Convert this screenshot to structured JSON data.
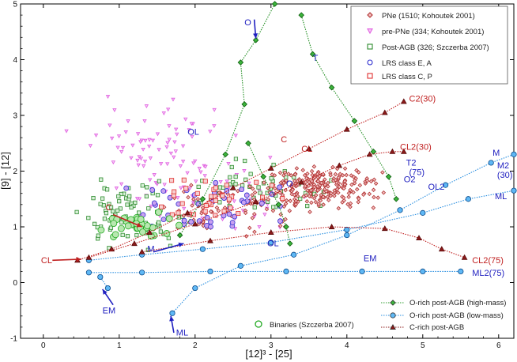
{
  "chart_data": {
    "type": "scatter",
    "title": "",
    "xlabel": "[12]³ - [25]",
    "ylabel": "[9] - [12]",
    "xlim": [
      -0.3,
      6.2
    ],
    "ylim": [
      -1,
      5
    ],
    "x_ticks": [
      "0",
      "1",
      "2",
      "3",
      "4",
      "5",
      "6"
    ],
    "y_ticks": [
      "-1",
      "0",
      "1",
      "2",
      "3",
      "4",
      "5"
    ],
    "grid": false,
    "legend_top": [
      {
        "label": "PNe (1510; Kohoutek 2001)",
        "marker": "diamond",
        "color": "#b03030"
      },
      {
        "label": "pre-PNe (334; Kohoutek 2001)",
        "marker": "triangle-down",
        "color": "#e060e0"
      },
      {
        "label": "Post-AGB (326; Szczerba 2007)",
        "marker": "square",
        "color": "#2e8b2e"
      },
      {
        "label": "LRS class E, A",
        "marker": "circle",
        "color": "#3030d0"
      },
      {
        "label": "LRS class C, P",
        "marker": "square",
        "color": "#e03030"
      }
    ],
    "legend_bottom": [
      {
        "label": "O-rich post-AGB (high-mass)",
        "marker": "diamond",
        "color": "#2e9e2e"
      },
      {
        "label": "O-rich post-AGB (low-mass)",
        "marker": "circle",
        "color": "#2a8fe0"
      },
      {
        "label": "C-rich post-AGB",
        "marker": "triangle",
        "color": "#8b1a1a"
      }
    ],
    "binaries_label": "Binaries (Szczerba 2007)",
    "tracks": [
      {
        "name": "O-rich high-mass",
        "color": "#1e8c1e",
        "marker": "diamond",
        "points": [
          [
            3.05,
            5.0
          ],
          [
            2.8,
            4.35
          ],
          [
            2.6,
            3.95
          ],
          [
            2.65,
            3.2
          ],
          [
            2.4,
            2.3
          ],
          [
            2.1,
            1.5
          ],
          [
            1.8,
            0.85
          ]
        ]
      },
      {
        "name": "O-rich high-mass",
        "color": "#1e8c1e",
        "marker": "diamond",
        "points": [
          [
            3.4,
            4.8
          ],
          [
            3.55,
            4.1
          ],
          [
            3.8,
            3.5
          ],
          [
            4.1,
            2.9
          ],
          [
            4.35,
            2.35
          ],
          [
            4.55,
            1.9
          ],
          [
            4.65,
            1.5
          ]
        ]
      },
      {
        "name": "O-rich high-mass",
        "color": "#1e8c1e",
        "marker": "diamond",
        "points": [
          [
            2.7,
            2.5
          ],
          [
            2.9,
            1.9
          ],
          [
            3.1,
            1.4
          ],
          [
            3.2,
            1.0
          ],
          [
            3.25,
            0.7
          ]
        ]
      },
      {
        "name": "O-rich low-mass",
        "color": "#2a8fe0",
        "marker": "circle",
        "points": [
          [
            0.6,
            0.4
          ],
          [
            1.3,
            0.5
          ],
          [
            2.1,
            0.6
          ],
          [
            3.0,
            0.72
          ],
          [
            4.0,
            0.95
          ],
          [
            5.0,
            1.25
          ],
          [
            5.6,
            1.5
          ],
          [
            6.2,
            1.65
          ]
        ]
      },
      {
        "name": "O-rich low-mass",
        "color": "#2a8fe0",
        "marker": "circle",
        "points": [
          [
            0.6,
            0.18
          ],
          [
            1.3,
            0.18
          ],
          [
            2.2,
            0.2
          ],
          [
            3.2,
            0.2
          ],
          [
            4.2,
            0.2
          ],
          [
            5.0,
            0.2
          ],
          [
            5.5,
            0.2
          ]
        ]
      },
      {
        "name": "O-rich low-mass",
        "color": "#2a8fe0",
        "marker": "circle",
        "points": [
          [
            0.85,
            -0.1
          ],
          [
            0.75,
            0.1
          ]
        ]
      },
      {
        "name": "O-rich low-mass",
        "color": "#2a8fe0",
        "marker": "circle",
        "points": [
          [
            1.7,
            -0.55
          ],
          [
            2.0,
            -0.1
          ],
          [
            2.6,
            0.3
          ],
          [
            3.3,
            0.5
          ],
          [
            4.0,
            0.85
          ],
          [
            4.7,
            1.3
          ],
          [
            5.3,
            1.75
          ],
          [
            5.9,
            2.15
          ],
          [
            6.2,
            2.3
          ]
        ]
      },
      {
        "name": "C-rich",
        "color": "#c02020",
        "marker": "triangle",
        "points": [
          [
            0.45,
            0.4
          ],
          [
            0.9,
            0.6
          ],
          [
            1.4,
            0.9
          ],
          [
            1.9,
            1.25
          ],
          [
            2.5,
            1.7
          ],
          [
            3.0,
            2.05
          ],
          [
            3.5,
            2.4
          ],
          [
            4.0,
            2.75
          ],
          [
            4.5,
            3.05
          ],
          [
            4.75,
            3.25
          ]
        ]
      },
      {
        "name": "C-rich",
        "color": "#c02020",
        "marker": "triangle",
        "points": [
          [
            0.6,
            0.45
          ],
          [
            1.2,
            0.7
          ],
          [
            2.0,
            1.05
          ],
          [
            2.8,
            1.45
          ],
          [
            3.4,
            1.8
          ],
          [
            3.9,
            2.1
          ],
          [
            4.3,
            2.3
          ],
          [
            4.6,
            2.35
          ],
          [
            4.75,
            2.35
          ]
        ]
      },
      {
        "name": "C-rich",
        "color": "#c02020",
        "marker": "triangle",
        "points": [
          [
            1.3,
            0.55
          ],
          [
            2.2,
            0.75
          ],
          [
            3.0,
            0.9
          ],
          [
            3.8,
            1.0
          ],
          [
            4.5,
            0.97
          ],
          [
            4.95,
            0.8
          ],
          [
            5.25,
            0.6
          ],
          [
            5.55,
            0.45
          ]
        ]
      }
    ],
    "annotations": [
      {
        "text": "O",
        "x": 2.65,
        "y": 4.62,
        "color": "#2020c0"
      },
      {
        "text": "T",
        "x": 3.55,
        "y": 3.98,
        "color": "#2020c0"
      },
      {
        "text": "C2(30)",
        "x": 4.82,
        "y": 3.25,
        "color": "#c02020"
      },
      {
        "text": "OL",
        "x": 1.9,
        "y": 2.65,
        "color": "#2020c0"
      },
      {
        "text": "C",
        "x": 3.13,
        "y": 2.52,
        "color": "#c02020"
      },
      {
        "text": "CL",
        "x": 3.4,
        "y": 2.35,
        "color": "#c02020"
      },
      {
        "text": "CL2(30)",
        "x": 4.7,
        "y": 2.38,
        "color": "#c02020"
      },
      {
        "text": "T2",
        "x": 4.78,
        "y": 2.1,
        "color": "#2020c0"
      },
      {
        "text": "(75)",
        "x": 4.82,
        "y": 1.93,
        "color": "#2020c0"
      },
      {
        "text": "O",
        "x": 3.2,
        "y": 1.72,
        "color": "#2020c0"
      },
      {
        "text": "O2",
        "x": 4.75,
        "y": 1.8,
        "color": "#2020c0"
      },
      {
        "text": "OL2",
        "x": 5.07,
        "y": 1.67,
        "color": "#2020c0"
      },
      {
        "text": "M",
        "x": 5.92,
        "y": 2.28,
        "color": "#2020c0"
      },
      {
        "text": "M2",
        "x": 5.98,
        "y": 2.05,
        "color": "#2020c0"
      },
      {
        "text": "(30)",
        "x": 5.98,
        "y": 1.88,
        "color": "#2020c0"
      },
      {
        "text": "ML",
        "x": 5.95,
        "y": 1.5,
        "color": "#2020c0"
      },
      {
        "text": "C",
        "x": 0.82,
        "y": 1.3,
        "color": "#c02020"
      },
      {
        "text": "M",
        "x": 1.37,
        "y": 0.55,
        "color": "#2020c0"
      },
      {
        "text": "OL",
        "x": 2.95,
        "y": 0.65,
        "color": "#2020c0"
      },
      {
        "text": "CL",
        "x": -0.03,
        "y": 0.35,
        "color": "#c02020"
      },
      {
        "text": "EM",
        "x": 4.22,
        "y": 0.38,
        "color": "#2020c0"
      },
      {
        "text": "CL2(75)",
        "x": 5.65,
        "y": 0.35,
        "color": "#c02020"
      },
      {
        "text": "ML2(75)",
        "x": 5.65,
        "y": 0.12,
        "color": "#2020c0"
      },
      {
        "text": "EM",
        "x": 0.78,
        "y": -0.55,
        "color": "#2020c0"
      },
      {
        "text": "ML",
        "x": 1.75,
        "y": -0.95,
        "color": "#2020c0"
      }
    ]
  },
  "colors": {
    "pne": "#b03030",
    "prepne": "#e060e0",
    "postagb": "#2e8b2e",
    "lrs_ea": "#3030d0",
    "lrs_cp": "#e03030",
    "hm_track": "#1e8c1e",
    "lm_track": "#2a8fe0",
    "c_track": "#c02020",
    "binary": "#22aa22",
    "annot_blue": "#2020c0",
    "annot_red": "#c02020"
  }
}
